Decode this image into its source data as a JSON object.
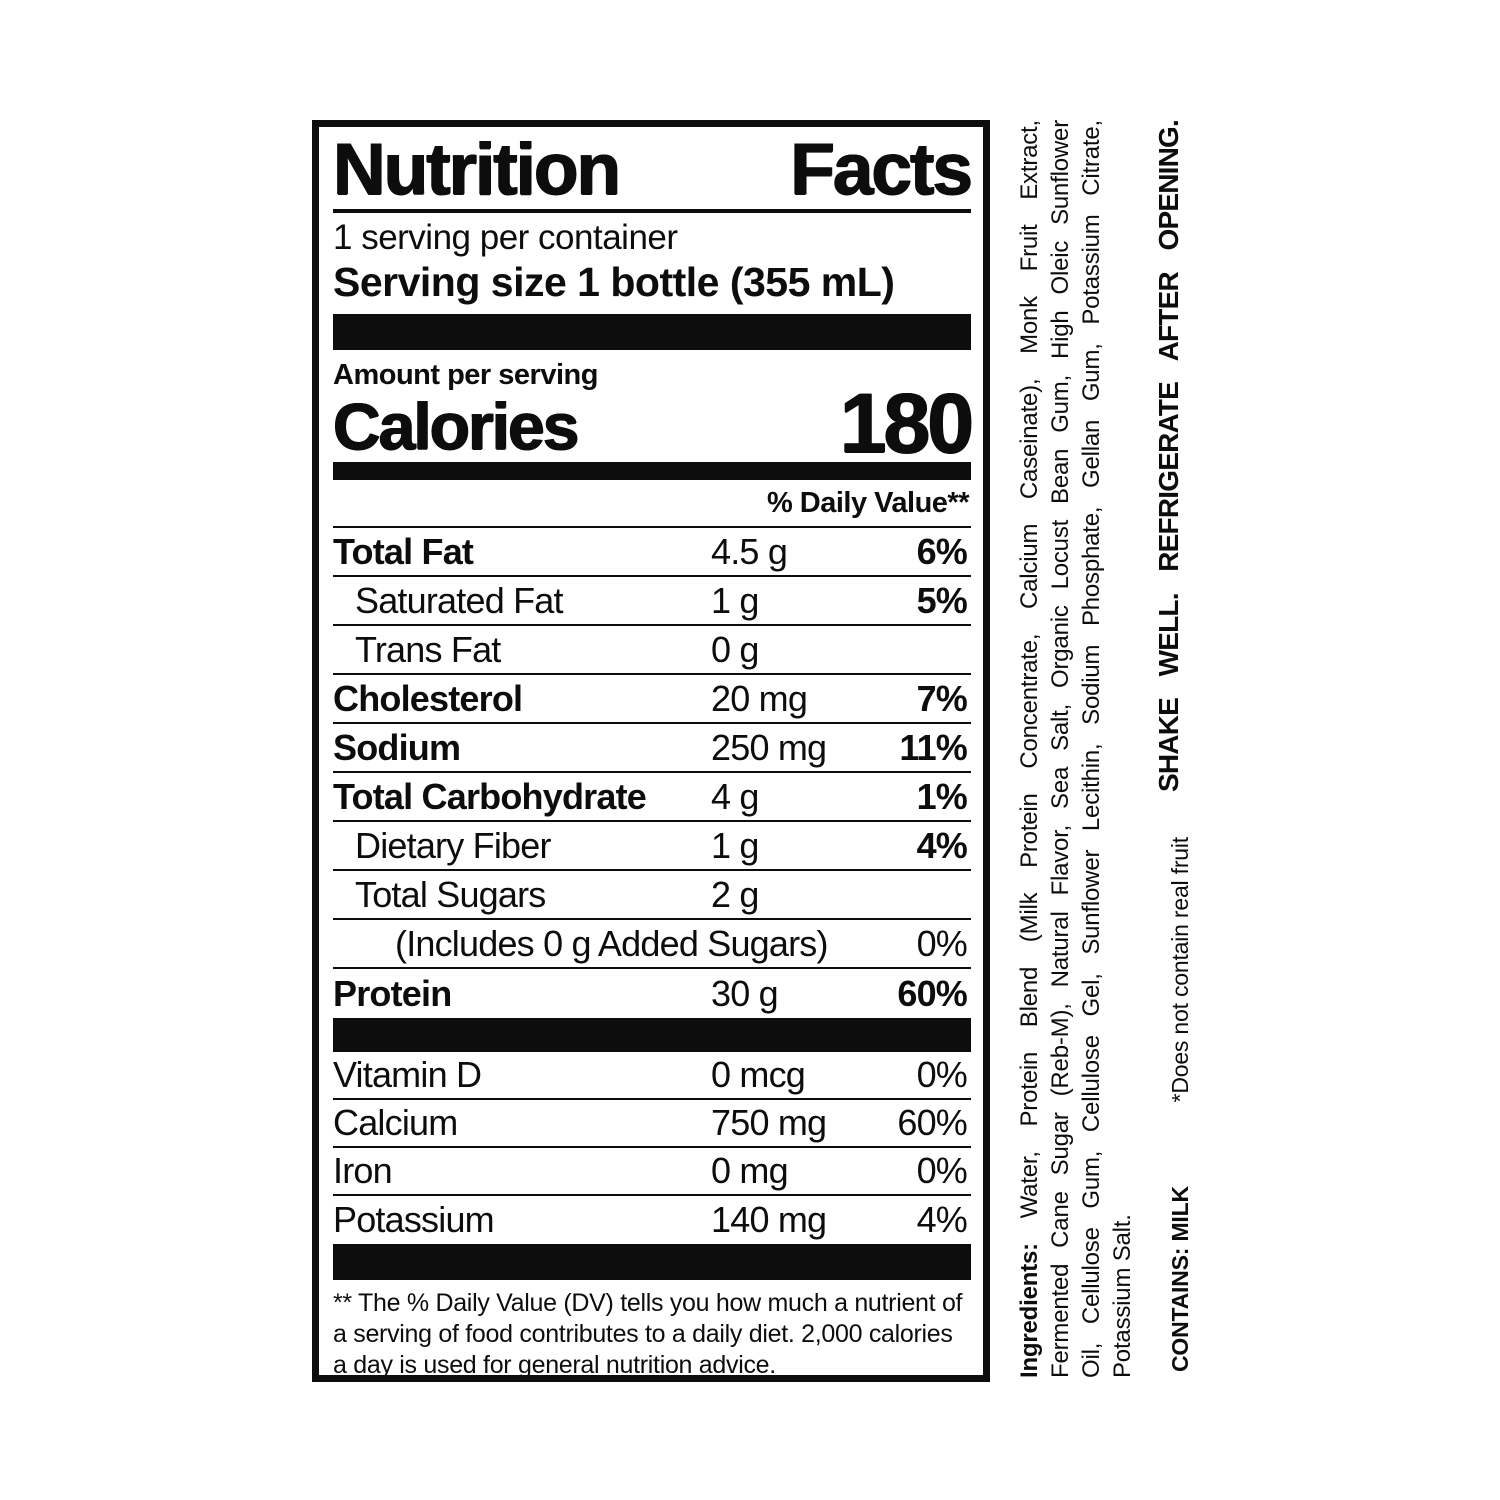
{
  "header": {
    "title": "Nutrition Facts",
    "servings_per_container": "1 serving per container",
    "serving_size": "Serving size 1 bottle (355 mL)"
  },
  "calories": {
    "amount_per_serving_label": "Amount per serving",
    "label": "Calories",
    "value": "180"
  },
  "daily_value_header": "% Daily Value**",
  "nutrients": [
    {
      "name": "Total Fat",
      "amount": "4.5 g",
      "dv": "6%",
      "bold": true,
      "indent": 0,
      "dv_bold": true
    },
    {
      "name": "Saturated Fat",
      "amount": "1 g",
      "dv": "5%",
      "bold": false,
      "indent": 1,
      "dv_bold": true
    },
    {
      "name": "Trans Fat",
      "amount": "0 g",
      "dv": "",
      "bold": false,
      "indent": 1,
      "dv_bold": false
    },
    {
      "name": "Cholesterol",
      "amount": "20 mg",
      "dv": "7%",
      "bold": true,
      "indent": 0,
      "dv_bold": true
    },
    {
      "name": "Sodium",
      "amount": "250 mg",
      "dv": "11%",
      "bold": true,
      "indent": 0,
      "dv_bold": true
    },
    {
      "name": "Total Carbohydrate",
      "amount": "4 g",
      "dv": "1%",
      "bold": true,
      "indent": 0,
      "dv_bold": true
    },
    {
      "name": "Dietary Fiber",
      "amount": "1 g",
      "dv": "4%",
      "bold": false,
      "indent": 1,
      "dv_bold": true
    },
    {
      "name": "Total Sugars",
      "amount": "2 g",
      "dv": "",
      "bold": false,
      "indent": 1,
      "dv_bold": false
    },
    {
      "name": "(Includes 0 g Added Sugars)",
      "amount": "",
      "dv": "0%",
      "bold": false,
      "indent": 2,
      "dv_bold": false
    },
    {
      "name": "Protein",
      "amount": "30 g",
      "dv": "60%",
      "bold": true,
      "indent": 0,
      "dv_bold": true
    }
  ],
  "vitamins": [
    {
      "name": "Vitamin D",
      "amount": "0 mcg",
      "dv": "0%"
    },
    {
      "name": "Calcium",
      "amount": "750 mg",
      "dv": "60%"
    },
    {
      "name": "Iron",
      "amount": "0 mg",
      "dv": "0%"
    },
    {
      "name": "Potassium",
      "amount": "140 mg",
      "dv": "4%"
    }
  ],
  "footnote": "** The % Daily Value (DV) tells you how much a nutrient of a serving of food contributes to a daily diet. 2,000 calories a day is used for general nutrition advice.",
  "side_text": {
    "ingredients_prefix": "Ingredients:",
    "ingredient_lines": [
      "Ingredients: Water, Protein Blend (Milk Protein Concentrate, Calcium Caseinate), Monk Fruit Extract,",
      "Fermented Cane Sugar (Reb-M), Natural Flavor, Sea Salt, Organic Locust Bean Gum, High Oleic Sunflower",
      "Oil, Cellulose Gum, Cellulose Gel, Sunflower Lecithin, Sodium Phosphate, Gellan Gum, Potassium Citrate,",
      "Potassium Salt."
    ],
    "contains": "CONTAINS: MILK",
    "fruit_note": "*Does not contain real fruit",
    "shake_well": "SHAKE WELL. REFRIGERATE AFTER OPENING."
  },
  "colors": {
    "ink": "#0d0d0d",
    "background": "#ffffff"
  }
}
